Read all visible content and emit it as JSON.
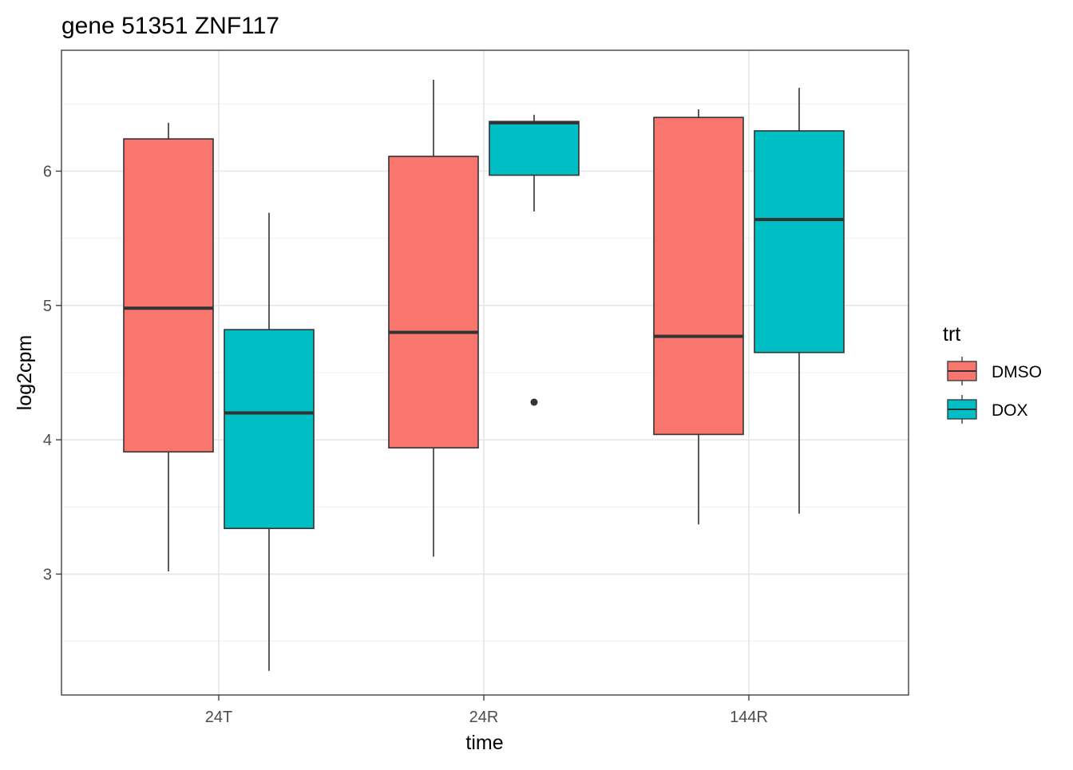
{
  "chart_data": {
    "type": "box",
    "title": "gene 51351 ZNF117",
    "xlabel": "time",
    "ylabel": "log2cpm",
    "categories": [
      "24T",
      "24R",
      "144R"
    ],
    "ylim": [
      2.1,
      6.9
    ],
    "yticks": [
      3,
      4,
      5,
      6
    ],
    "ytick_labels": [
      "3",
      "4",
      "5",
      "6"
    ],
    "grid": true,
    "legend": {
      "title": "trt",
      "position": "right"
    },
    "series": [
      {
        "name": "DMSO",
        "color": "#F8766D",
        "boxes": [
          {
            "category": "24T",
            "min": 3.02,
            "q1": 3.91,
            "median": 4.98,
            "q3": 6.24,
            "max": 6.36,
            "outliers": []
          },
          {
            "category": "24R",
            "min": 3.13,
            "q1": 3.94,
            "median": 4.8,
            "q3": 6.11,
            "max": 6.68,
            "outliers": []
          },
          {
            "category": "144R",
            "min": 3.37,
            "q1": 4.04,
            "median": 4.77,
            "q3": 6.4,
            "max": 6.46,
            "outliers": []
          }
        ]
      },
      {
        "name": "DOX",
        "color": "#00BFC4",
        "boxes": [
          {
            "category": "24T",
            "min": 2.28,
            "q1": 3.34,
            "median": 4.2,
            "q3": 4.82,
            "max": 5.69,
            "outliers": []
          },
          {
            "category": "24R",
            "min": 5.7,
            "q1": 5.97,
            "median": 6.36,
            "q3": 6.37,
            "max": 6.42,
            "outliers": [
              4.28
            ]
          },
          {
            "category": "144R",
            "min": 3.45,
            "q1": 4.65,
            "median": 5.64,
            "q3": 6.3,
            "max": 6.62,
            "outliers": []
          }
        ]
      }
    ]
  }
}
